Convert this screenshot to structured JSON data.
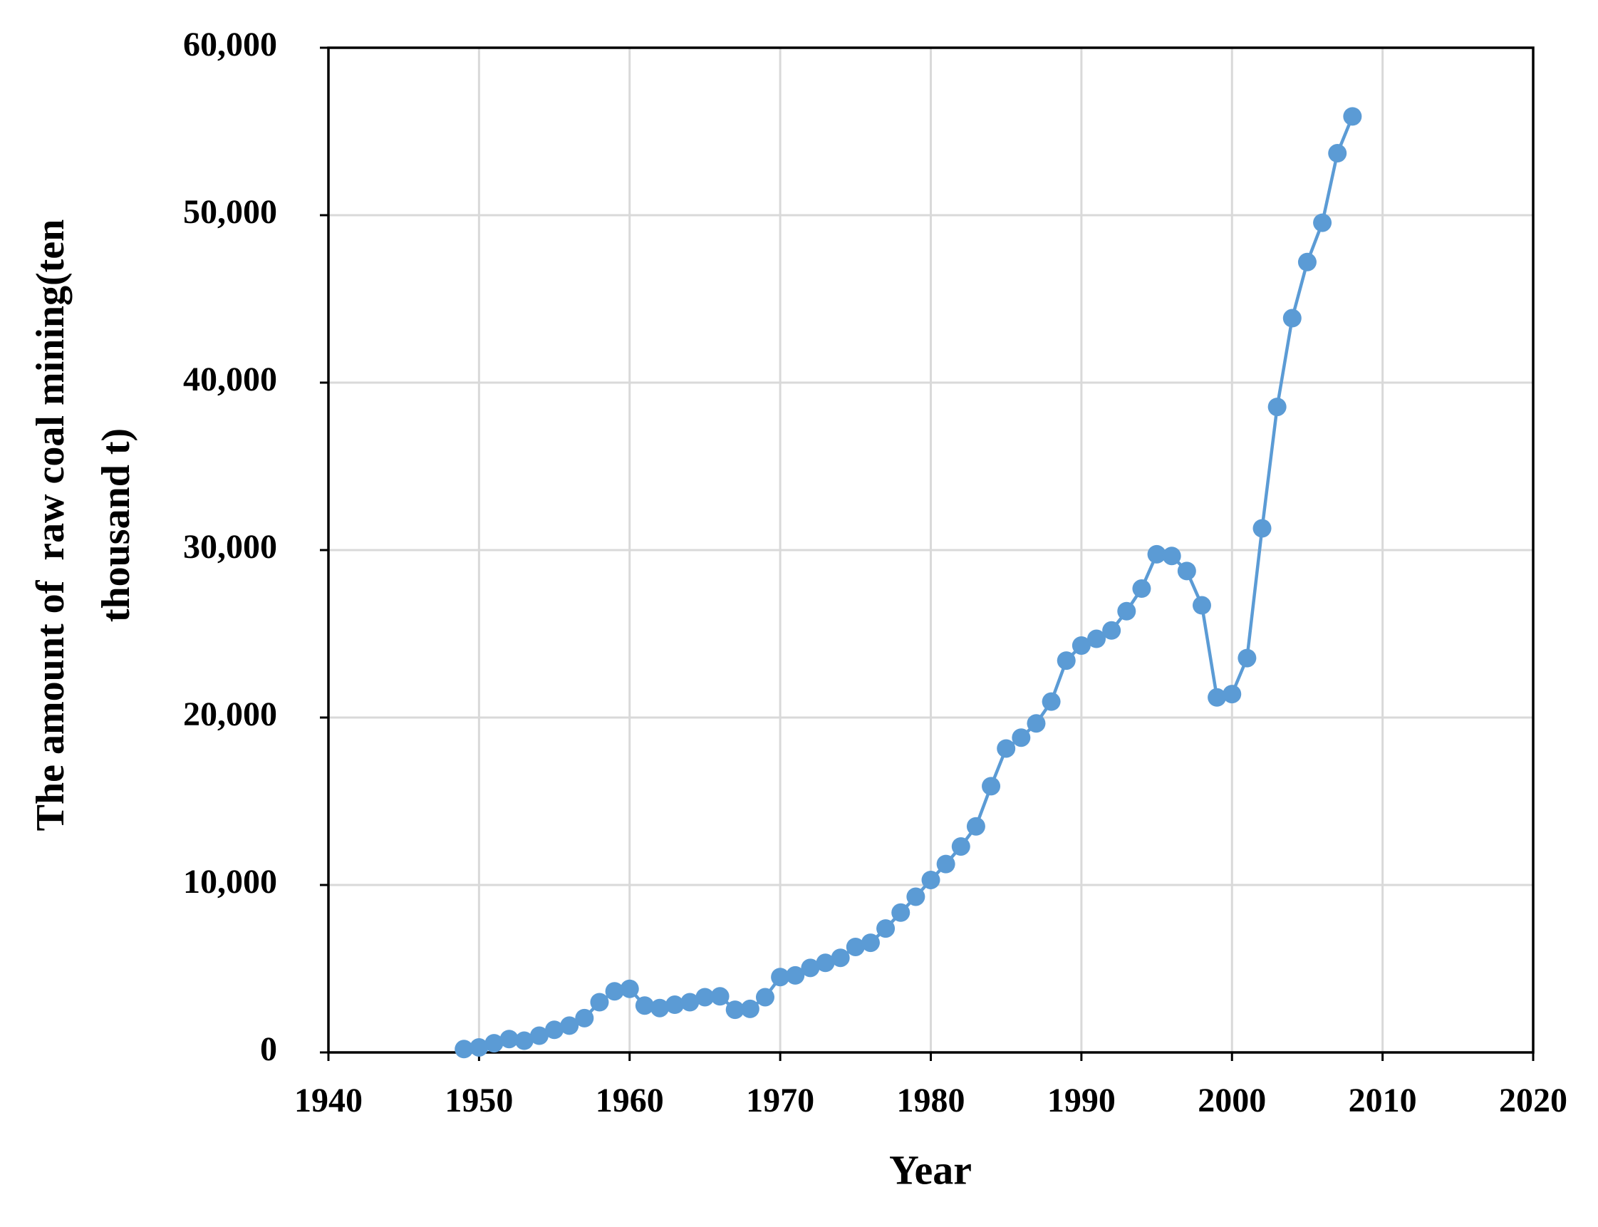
{
  "chart_data": {
    "type": "line",
    "xlabel": "Year",
    "ylabel": [
      "The amount of  raw coal mining(ten",
      "thousand t)"
    ],
    "x": [
      1949,
      1950,
      1951,
      1952,
      1953,
      1954,
      1955,
      1956,
      1957,
      1958,
      1959,
      1960,
      1961,
      1962,
      1963,
      1964,
      1965,
      1966,
      1967,
      1968,
      1969,
      1970,
      1971,
      1972,
      1973,
      1974,
      1975,
      1976,
      1977,
      1978,
      1979,
      1980,
      1981,
      1982,
      1983,
      1984,
      1985,
      1986,
      1987,
      1988,
      1989,
      1990,
      1991,
      1992,
      1993,
      1994,
      1995,
      1996,
      1997,
      1998,
      1999,
      2000,
      2001,
      2002,
      2003,
      2004,
      2005,
      2006,
      2007,
      2008
    ],
    "series": [
      {
        "color": "#5b9bd5",
        "values": [
          200,
          300,
          550,
          800,
          700,
          1000,
          1350,
          1600,
          2050,
          3000,
          3650,
          3800,
          2800,
          2650,
          2850,
          3000,
          3300,
          3350,
          2550,
          2600,
          3300,
          4500,
          4600,
          5050,
          5350,
          5650,
          6300,
          6550,
          7400,
          8350,
          9300,
          10300,
          11250,
          12300,
          13500,
          15900,
          18150,
          18800,
          19650,
          20950,
          23400,
          24300,
          24700,
          25200,
          26350,
          27700,
          29750,
          29650,
          28750,
          26700,
          21200,
          21400,
          23550,
          31300,
          38550,
          43850,
          47200,
          49550,
          53700,
          55900
        ]
      }
    ],
    "xlim": [
      1940,
      2020
    ],
    "xticks": [
      1940,
      1950,
      1960,
      1970,
      1980,
      1990,
      2000,
      2010,
      2020
    ],
    "ylim": [
      0,
      60000
    ],
    "yticks": [
      0,
      {
        "value": 10000,
        "label": "10,000"
      },
      {
        "value": 20000,
        "label": "20,000"
      },
      {
        "value": 30000,
        "label": "30,000"
      },
      {
        "value": 40000,
        "label": "40,000"
      },
      {
        "value": 50000,
        "label": "50,000"
      },
      {
        "value": 60000,
        "label": "60,000"
      }
    ],
    "grid": true
  }
}
